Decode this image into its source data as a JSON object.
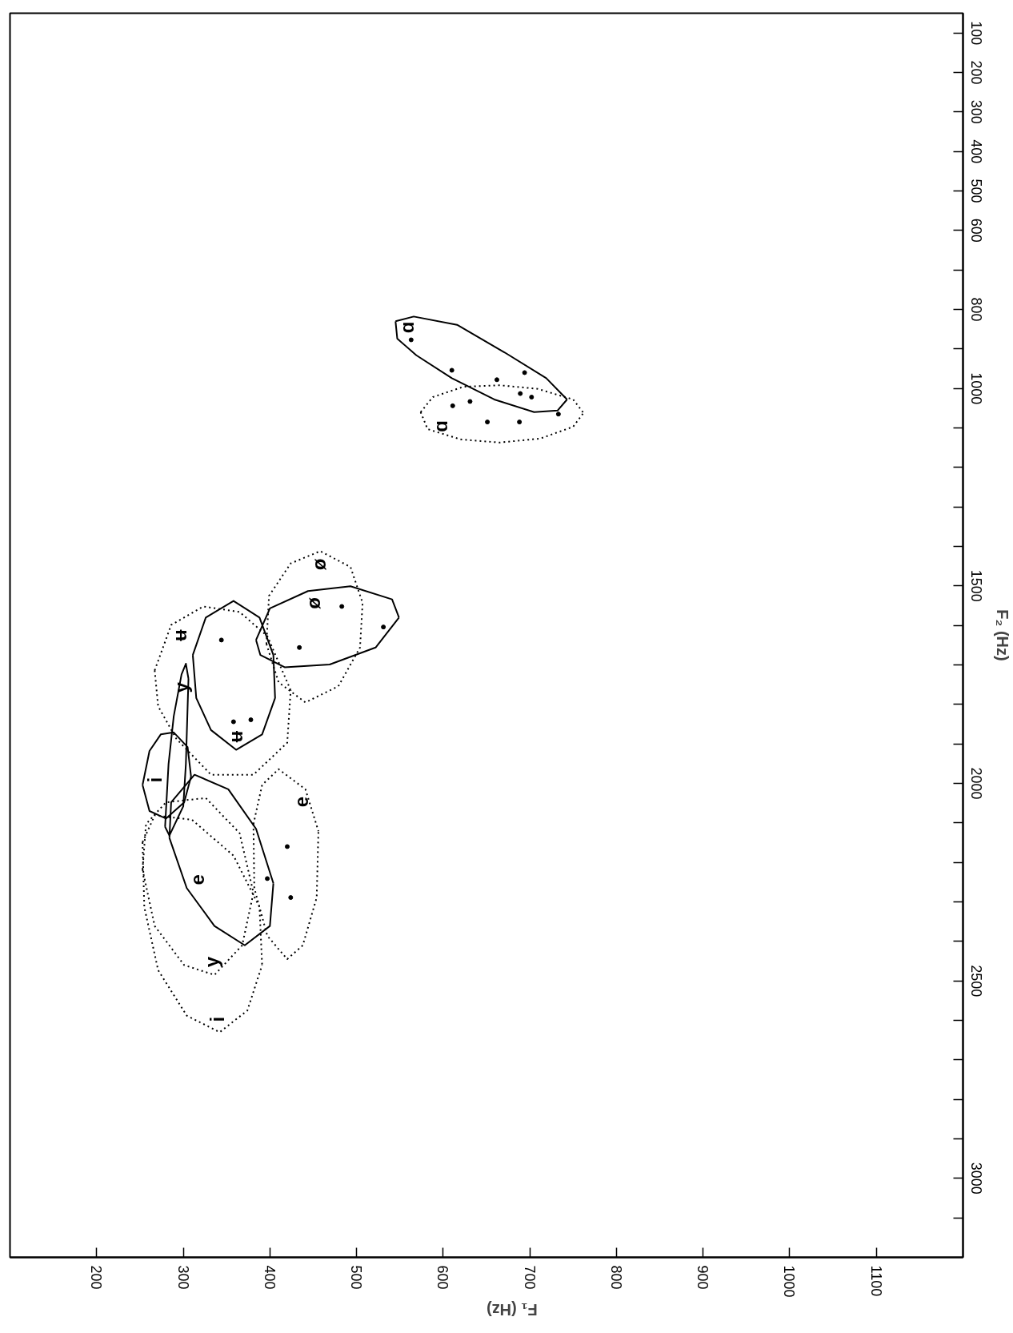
{
  "chart_data": {
    "type": "line",
    "xlabel": "F₁ (Hz)",
    "ylabel": "F₂ (Hz)",
    "xlim": [
      100,
      1200
    ],
    "ylim": [
      3200,
      50
    ],
    "xticks": [
      200,
      300,
      400,
      500,
      600,
      700,
      800,
      900,
      1000,
      1100
    ],
    "yticks": [
      100,
      200,
      300,
      400,
      500,
      600,
      {
        "value": 700,
        "label": null
      },
      800,
      {
        "value": 900,
        "label": null
      },
      1000,
      {
        "value": 1100,
        "label": null
      },
      {
        "value": 1200,
        "label": null
      },
      {
        "value": 1300,
        "label": null
      },
      {
        "value": 1400,
        "label": null
      },
      1500,
      {
        "value": 1600,
        "label": null
      },
      {
        "value": 1700,
        "label": null
      },
      {
        "value": 1800,
        "label": null
      },
      {
        "value": 1900,
        "label": null
      },
      2000,
      {
        "value": 2100,
        "label": null
      },
      {
        "value": 2200,
        "label": null
      },
      {
        "value": 2300,
        "label": null
      },
      {
        "value": 2400,
        "label": null
      },
      2500,
      {
        "value": 2600,
        "label": null
      },
      {
        "value": 2700,
        "label": null
      },
      {
        "value": 2800,
        "label": null
      },
      {
        "value": 2900,
        "label": null
      },
      3000,
      {
        "value": 3100,
        "label": null
      }
    ],
    "grid": false,
    "series": [
      {
        "name": "ø",
        "color": "#000000",
        "line_style": "solid",
        "x": [
          384,
          400,
          444,
          493,
          541,
          549,
          null,
          384,
          389,
          417,
          469,
          522,
          549
        ],
        "values": [
          1637,
          1557,
          1513,
          1501,
          1534,
          1580,
          null,
          1637,
          1675,
          1706,
          1699,
          1656,
          1580
        ]
      },
      {
        "name": "ʉ",
        "color": "#000000",
        "line_style": "solid",
        "x": [
          311,
          326,
          358,
          388,
          404,
          406,
          null,
          311,
          315,
          332,
          361,
          391,
          406
        ],
        "values": [
          1675,
          1580,
          1538,
          1580,
          1675,
          1784,
          null,
          1675,
          1784,
          1865,
          1915,
          1876,
          1784
        ]
      },
      {
        "name": "y",
        "color": "#000000",
        "line_style": "solid",
        "x": [
          279,
          283,
          289,
          298,
          303,
          306,
          null,
          279,
          284,
          300,
          303,
          306
        ],
        "values": [
          2110,
          1951,
          1830,
          1724,
          1697,
          1735,
          null,
          2110,
          2132,
          2058,
          1951,
          1735
        ]
      },
      {
        "name": "i",
        "color": "#000000",
        "line_style": "solid",
        "x": [
          253,
          261,
          274,
          289,
          305,
          309,
          null,
          253,
          261,
          280,
          301,
          309
        ],
        "values": [
          2004,
          1918,
          1876,
          1871,
          1908,
          1983,
          null,
          2004,
          2070,
          2089,
          2048,
          1983
        ]
      },
      {
        "name": "e",
        "color": "#000000",
        "line_style": "solid",
        "x": [
          284,
          286,
          313,
          352,
          384,
          404,
          null,
          284,
          304,
          336,
          371,
          400,
          404
        ],
        "values": [
          2138,
          2048,
          1978,
          2015,
          2115,
          2253,
          null,
          2138,
          2265,
          2361,
          2410,
          2361,
          2253
        ]
      },
      {
        "name": "ɑ",
        "color": "#000000",
        "line_style": "solid",
        "x": [
          545,
          566,
          616,
          671,
          719,
          743,
          null,
          545,
          547,
          569,
          610,
          659,
          705,
          732,
          743
        ],
        "values": [
          830,
          818,
          839,
          909,
          974,
          1028,
          null,
          830,
          874,
          916,
          974,
          1028,
          1060,
          1056,
          1028
        ]
      },
      {
        "name": "ɑ",
        "color": "#000000",
        "line_style": "dotted",
        "x": [
          574,
          588,
          623,
          665,
          709,
          750,
          762,
          null,
          574,
          582,
          620,
          665,
          712,
          750,
          762
        ],
        "values": [
          1060,
          1022,
          996,
          992,
          1001,
          1028,
          1062,
          null,
          1060,
          1103,
          1129,
          1137,
          1127,
          1097,
          1062
        ]
      },
      {
        "name": "ø",
        "color": "#000000",
        "line_style": "dotted",
        "x": [
          396,
          399,
          424,
          458,
          493,
          507,
          null,
          396,
          410,
          441,
          479,
          504,
          507
        ],
        "values": [
          1647,
          1525,
          1443,
          1412,
          1452,
          1543,
          null,
          1647,
          1744,
          1795,
          1754,
          1656,
          1543
        ]
      },
      {
        "name": "ʉ",
        "color": "#000000",
        "line_style": "dotted",
        "x": [
          267,
          286,
          323,
          365,
          397,
          424,
          null,
          267,
          271,
          292,
          332,
          381,
          420,
          424
        ],
        "values": [
          1714,
          1599,
          1552,
          1566,
          1627,
          1764,
          null,
          1714,
          1805,
          1887,
          1978,
          1978,
          1897,
          1764
        ]
      },
      {
        "name": "e",
        "color": "#000000",
        "line_style": "dotted",
        "x": [
          381,
          391,
          410,
          441,
          456,
          null,
          381,
          382,
          397,
          420,
          438,
          454,
          456
        ],
        "values": [
          2103,
          2004,
          1964,
          2015,
          2121,
          null,
          2103,
          2265,
          2386,
          2445,
          2410,
          2289,
          2121
        ]
      },
      {
        "name": "y",
        "color": "#000000",
        "line_style": "dotted",
        "x": [
          253,
          257,
          280,
          326,
          365,
          381,
          null,
          253,
          267,
          301,
          336,
          368,
          381
        ],
        "values": [
          2218,
          2103,
          2048,
          2037,
          2126,
          2277,
          null,
          2218,
          2361,
          2460,
          2485,
          2410,
          2277
        ]
      },
      {
        "name": "i",
        "color": "#000000",
        "line_style": "dotted",
        "x": [
          253,
          267,
          310,
          358,
          388,
          391,
          null,
          253,
          255,
          271,
          304,
          342,
          374,
          391
        ],
        "values": [
          2149,
          2081,
          2092,
          2183,
          2313,
          2460,
          null,
          2149,
          2313,
          2473,
          2588,
          2630,
          2575,
          2460
        ]
      },
      {
        "type": "scatter",
        "color": "#000000",
        "marker": "circle",
        "x": [
          563,
          610,
          694,
          662,
          689,
          702,
          631,
          611,
          651,
          688,
          733,
          483,
          531,
          434,
          344,
          358,
          378,
          420,
          424,
          397
        ],
        "values": [
          877,
          954,
          960,
          978,
          1013,
          1022,
          1033,
          1044,
          1085,
          1085,
          1065,
          1552,
          1604,
          1656,
          1637,
          1844,
          1839,
          2160,
          2289,
          2241
        ]
      }
    ]
  }
}
